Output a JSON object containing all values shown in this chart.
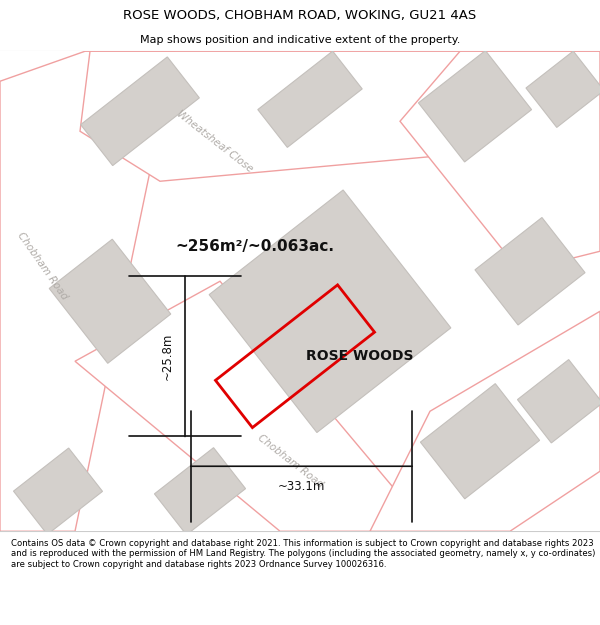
{
  "title": "ROSE WOODS, CHOBHAM ROAD, WOKING, GU21 4AS",
  "subtitle": "Map shows position and indicative extent of the property.",
  "footer": "Contains OS data © Crown copyright and database right 2021. This information is subject to Crown copyright and database rights 2023 and is reproduced with the permission of HM Land Registry. The polygons (including the associated geometry, namely x, y co-ordinates) are subject to Crown copyright and database rights 2023 Ordnance Survey 100026316.",
  "bg_color": "#ede9e5",
  "road_fill": "#ffffff",
  "road_stroke": "#f0a0a0",
  "building_fill": "#d4d0cc",
  "building_stroke": "#c4c0bc",
  "property_stroke": "#e00000",
  "dim_color": "#111111",
  "street_label_color": "#b0aca8",
  "area_text": "~256m²/~0.063ac.",
  "property_label": "ROSE WOODS",
  "dim_width": "~33.1m",
  "dim_height": "~25.8m",
  "road_label_chobham_upper": "Chobham Road",
  "road_label_wheatsheaf": "Wheatsheaf Close",
  "road_label_chobham_lower": "Chobham Road"
}
